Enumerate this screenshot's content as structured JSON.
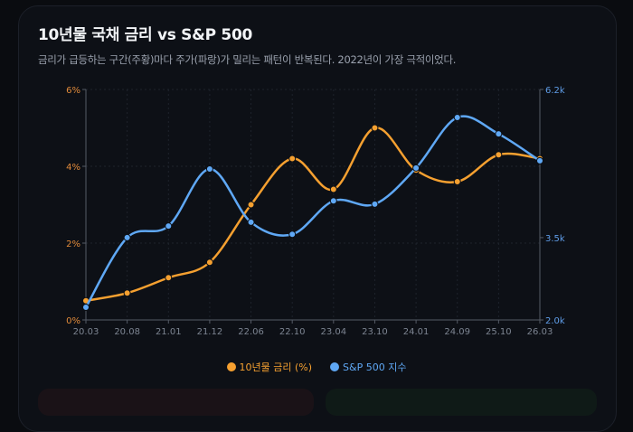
{
  "title": "10년물 국채 금리 vs S&P 500",
  "subtitle": "금리가 급등하는 구간(주황)마다 주가(파랑)가 밀리는 패턴이 반복된다. 2022년이 가장 극적이었다.",
  "chart_data": {
    "type": "line",
    "categories": [
      "20.03",
      "20.08",
      "21.01",
      "21.12",
      "22.06",
      "22.10",
      "23.04",
      "23.10",
      "24.01",
      "24.09",
      "25.10",
      "26.03"
    ],
    "series": [
      {
        "name": "10년물 금리 (%)",
        "axis": "left",
        "color": "#f5a030",
        "values": [
          0.5,
          0.7,
          1.1,
          1.5,
          3.0,
          4.2,
          3.4,
          5.0,
          3.9,
          3.6,
          4.3,
          4.2
        ]
      },
      {
        "name": "S&P 500 지수",
        "axis": "right",
        "color": "#5fa8f5",
        "values": [
          2.23,
          3.5,
          3.71,
          4.75,
          3.78,
          3.56,
          4.17,
          4.11,
          4.77,
          5.69,
          5.39,
          4.9
        ]
      }
    ],
    "y_left": {
      "ticks": [
        "0%",
        "2%",
        "4%",
        "6%"
      ],
      "range": [
        0,
        6
      ],
      "color": "#e08a3a"
    },
    "y_right": {
      "ticks": [
        "2.0k",
        "3.5k",
        "6.2k"
      ],
      "tick_values": [
        2.0,
        3.5,
        6.2
      ],
      "range": [
        2.0,
        6.2
      ],
      "unit": "k",
      "color": "#5f9de8"
    },
    "grid": true,
    "legend": "bottom"
  }
}
